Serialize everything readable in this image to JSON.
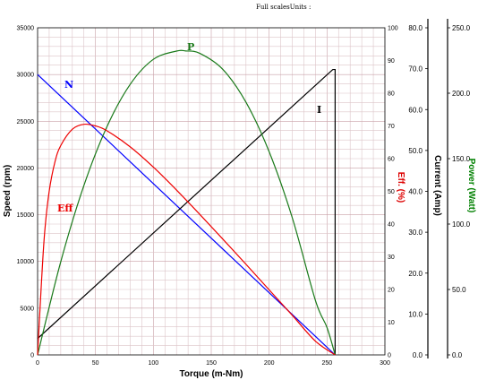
{
  "header_text": "Full scalesUnits :",
  "chart_data": {
    "type": "line",
    "xlabel": "Torque (m-Nm)",
    "xlim": [
      0,
      300
    ],
    "x_ticks": [
      "0",
      "50",
      "100",
      "150",
      "200",
      "250",
      "300"
    ],
    "axes": {
      "speed": {
        "label": "Speed (rpm)",
        "range": [
          0,
          35000
        ],
        "ticks": [
          "0",
          "5000",
          "10000",
          "15000",
          "20000",
          "25000",
          "30000",
          "35000"
        ],
        "color": "#000000"
      },
      "eff": {
        "label": "Eff. (%)",
        "range": [
          0,
          100
        ],
        "ticks": [
          "0",
          "10",
          "20",
          "30",
          "40",
          "50",
          "60",
          "70",
          "80",
          "90",
          "100"
        ],
        "color": "#dd0000"
      },
      "current": {
        "label": "Current (Amp)",
        "range": [
          0,
          80
        ],
        "ticks": [
          "0.0",
          "10.0",
          "20.0",
          "30.0",
          "40.0",
          "50.0",
          "60.0",
          "70.0",
          "80.0"
        ],
        "color": "#000000"
      },
      "power": {
        "label": "Power (Watt)",
        "range": [
          0,
          250
        ],
        "ticks": [
          "0.0",
          "50.0",
          "100.0",
          "150.0",
          "200.0",
          "250.0"
        ],
        "color": "#008000"
      }
    },
    "grid": true,
    "series": [
      {
        "name": "N",
        "axis": "speed",
        "color": "#0000ff",
        "x": [
          0,
          257
        ],
        "y": [
          30000,
          0
        ]
      },
      {
        "name": "I",
        "axis": "current",
        "color": "#000000",
        "x": [
          0,
          255,
          257,
          257
        ],
        "y": [
          4,
          69.8,
          69.8,
          0
        ]
      },
      {
        "name": "P",
        "axis": "power",
        "color": "#1a7a1a",
        "x": [
          0,
          20,
          40,
          60,
          80,
          100,
          120,
          128,
          140,
          160,
          180,
          200,
          220,
          240,
          250,
          257
        ],
        "y": [
          0,
          71.2,
          129.5,
          174.6,
          206.8,
          225.9,
          232.2,
          232.3,
          230.5,
          218.2,
          193.1,
          155.3,
          104.8,
          41.6,
          20.9,
          0
        ]
      },
      {
        "name": "Eff",
        "axis": "eff",
        "color": "#ee0000",
        "x": [
          0,
          3,
          6,
          10,
          15,
          20,
          30,
          40,
          50,
          60,
          80,
          100,
          120,
          140,
          160,
          180,
          200,
          220,
          240,
          257
        ],
        "y": [
          0,
          20,
          37,
          50,
          59,
          64,
          69,
          70.5,
          70,
          68.5,
          63.6,
          57.4,
          50.4,
          43,
          35.4,
          27.7,
          19.9,
          12.1,
          4.2,
          0
        ]
      }
    ]
  }
}
